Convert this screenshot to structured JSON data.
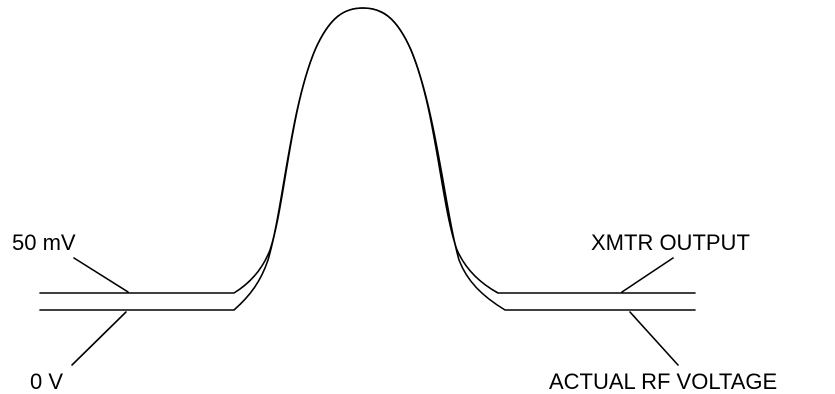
{
  "labels": {
    "top_left": "50 mV",
    "bottom_left": "0 V",
    "top_right": "XMTR OUTPUT",
    "bottom_right": "ACTUAL RF VOLTAGE"
  },
  "colors": {
    "line": "#000000",
    "background": "#ffffff"
  }
}
